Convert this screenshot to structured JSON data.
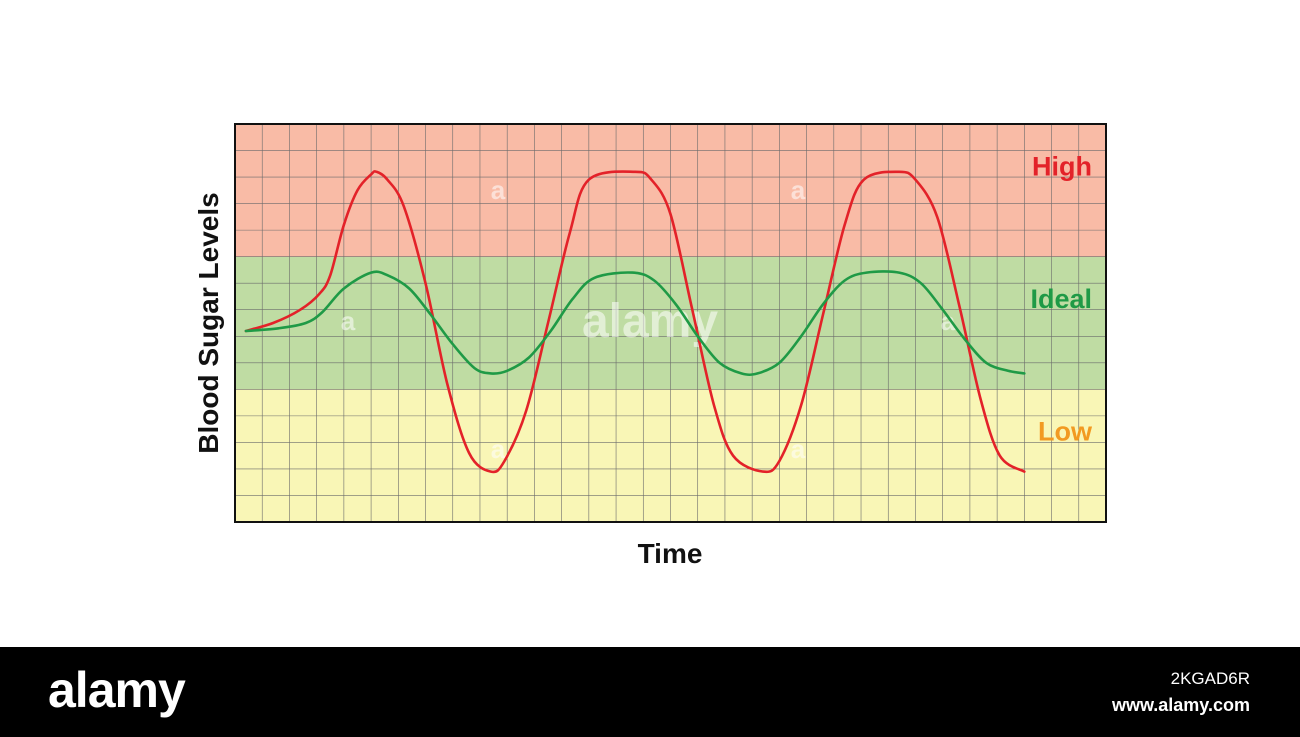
{
  "chart_data": {
    "type": "line",
    "title": "",
    "xlabel": "Time",
    "ylabel": "Blood Sugar Levels",
    "xlim": [
      0,
      32
    ],
    "ylim": [
      0,
      15
    ],
    "grid": true,
    "zones": [
      {
        "label": "High",
        "from": 10,
        "to": 15,
        "fill": "#f9bba6",
        "text_color": "#e32229"
      },
      {
        "label": "Ideal",
        "from": 5,
        "to": 10,
        "fill": "#bfdca3",
        "text_color": "#1f9a46"
      },
      {
        "label": "Low",
        "from": 0,
        "to": 5,
        "fill": "#f9f6b6",
        "text_color": "#f29a21"
      }
    ],
    "series": [
      {
        "color": "#e32229",
        "points": [
          [
            0.4,
            7.2
          ],
          [
            1.4,
            7.5
          ],
          [
            2.4,
            8.0
          ],
          [
            3.1,
            8.6
          ],
          [
            3.5,
            9.3
          ],
          [
            4.0,
            11.2
          ],
          [
            4.5,
            12.5
          ],
          [
            5.0,
            13.1
          ],
          [
            5.2,
            13.2
          ],
          [
            5.6,
            12.9
          ],
          [
            6.2,
            11.9
          ],
          [
            7.0,
            9.0
          ],
          [
            7.8,
            5.2
          ],
          [
            8.6,
            2.6
          ],
          [
            9.4,
            1.9
          ],
          [
            9.9,
            2.3
          ],
          [
            10.7,
            4.2
          ],
          [
            11.5,
            7.5
          ],
          [
            12.3,
            10.9
          ],
          [
            13.0,
            12.9
          ],
          [
            14.7,
            13.2
          ],
          [
            15.3,
            12.9
          ],
          [
            16.0,
            11.6
          ],
          [
            16.8,
            8.0
          ],
          [
            17.6,
            4.4
          ],
          [
            18.3,
            2.5
          ],
          [
            19.4,
            1.9
          ],
          [
            20.0,
            2.3
          ],
          [
            20.8,
            4.4
          ],
          [
            21.6,
            7.8
          ],
          [
            22.4,
            11.2
          ],
          [
            23.1,
            12.9
          ],
          [
            24.4,
            13.2
          ],
          [
            25.0,
            12.9
          ],
          [
            25.8,
            11.5
          ],
          [
            26.6,
            8.2
          ],
          [
            27.4,
            4.6
          ],
          [
            28.1,
            2.5
          ],
          [
            29.0,
            1.9
          ]
        ]
      },
      {
        "color": "#1f9a46",
        "points": [
          [
            0.4,
            7.2
          ],
          [
            1.6,
            7.3
          ],
          [
            2.6,
            7.5
          ],
          [
            3.2,
            7.9
          ],
          [
            4.0,
            8.8
          ],
          [
            5.0,
            9.4
          ],
          [
            5.6,
            9.3
          ],
          [
            6.4,
            8.8
          ],
          [
            7.2,
            7.8
          ],
          [
            8.0,
            6.7
          ],
          [
            8.8,
            5.8
          ],
          [
            9.4,
            5.6
          ],
          [
            10.0,
            5.7
          ],
          [
            10.8,
            6.2
          ],
          [
            11.6,
            7.2
          ],
          [
            12.4,
            8.4
          ],
          [
            13.2,
            9.2
          ],
          [
            14.6,
            9.4
          ],
          [
            15.4,
            9.1
          ],
          [
            16.2,
            8.2
          ],
          [
            17.0,
            7.0
          ],
          [
            17.8,
            6.0
          ],
          [
            18.6,
            5.6
          ],
          [
            19.2,
            5.6
          ],
          [
            20.0,
            6.0
          ],
          [
            20.8,
            7.0
          ],
          [
            21.6,
            8.2
          ],
          [
            22.4,
            9.1
          ],
          [
            23.2,
            9.4
          ],
          [
            24.4,
            9.4
          ],
          [
            25.2,
            9.0
          ],
          [
            26.0,
            8.0
          ],
          [
            26.8,
            6.9
          ],
          [
            27.6,
            6.0
          ],
          [
            28.4,
            5.7
          ],
          [
            29.0,
            5.6
          ]
        ]
      }
    ]
  },
  "watermark": {
    "main": "alamy",
    "small": "a"
  },
  "footer": {
    "logo": "alamy",
    "image_id": "2KGAD6R",
    "url": "www.alamy.com"
  }
}
